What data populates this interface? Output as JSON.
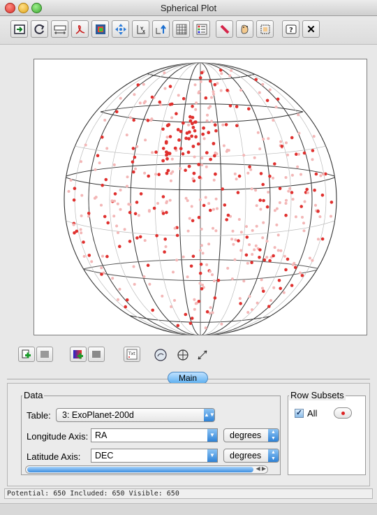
{
  "window": {
    "title": "Spherical Plot"
  },
  "toolbar": {
    "icons": [
      "export-icon",
      "replot-icon",
      "axis-width-icon",
      "pdf-export-icon",
      "image-export-icon",
      "navigate-icon",
      "axis-labels-icon",
      "export-data-icon",
      "grid-icon",
      "legend-icon",
      "highlight-icon",
      "subset-icon",
      "blob-subset-icon",
      "help-icon",
      "close-icon"
    ],
    "close_glyph": "✕",
    "help_glyph": "?"
  },
  "plot": {
    "point_color": "#e0302e",
    "faint_point_color": "#f3b6b6"
  },
  "bottom_toolbar": {
    "icons": [
      "add-layer-icon",
      "remove-layer-icon",
      "add-color-layer-icon",
      "remove-color-layer-icon",
      "text-label-icon",
      "rotate-icon",
      "crosshair-icon",
      "zoom-line-icon"
    ],
    "txt_label": "Txt"
  },
  "tabs": {
    "main": "Main"
  },
  "data_panel": {
    "title": "Data",
    "table_label": "Table:",
    "table_value": "3: ExoPlanet-200d",
    "longitude_label": "Longitude Axis:",
    "longitude_value": "RA",
    "longitude_unit": "degrees",
    "latitude_label": "Latitude Axis:",
    "latitude_value": "DEC",
    "latitude_unit": "degrees"
  },
  "row_subsets": {
    "title": "Row Subsets",
    "items": [
      {
        "label": "All",
        "checked": true,
        "color": "#dd2222"
      }
    ]
  },
  "status": {
    "text": "Potential: 650 Included: 650 Visible: 650"
  }
}
